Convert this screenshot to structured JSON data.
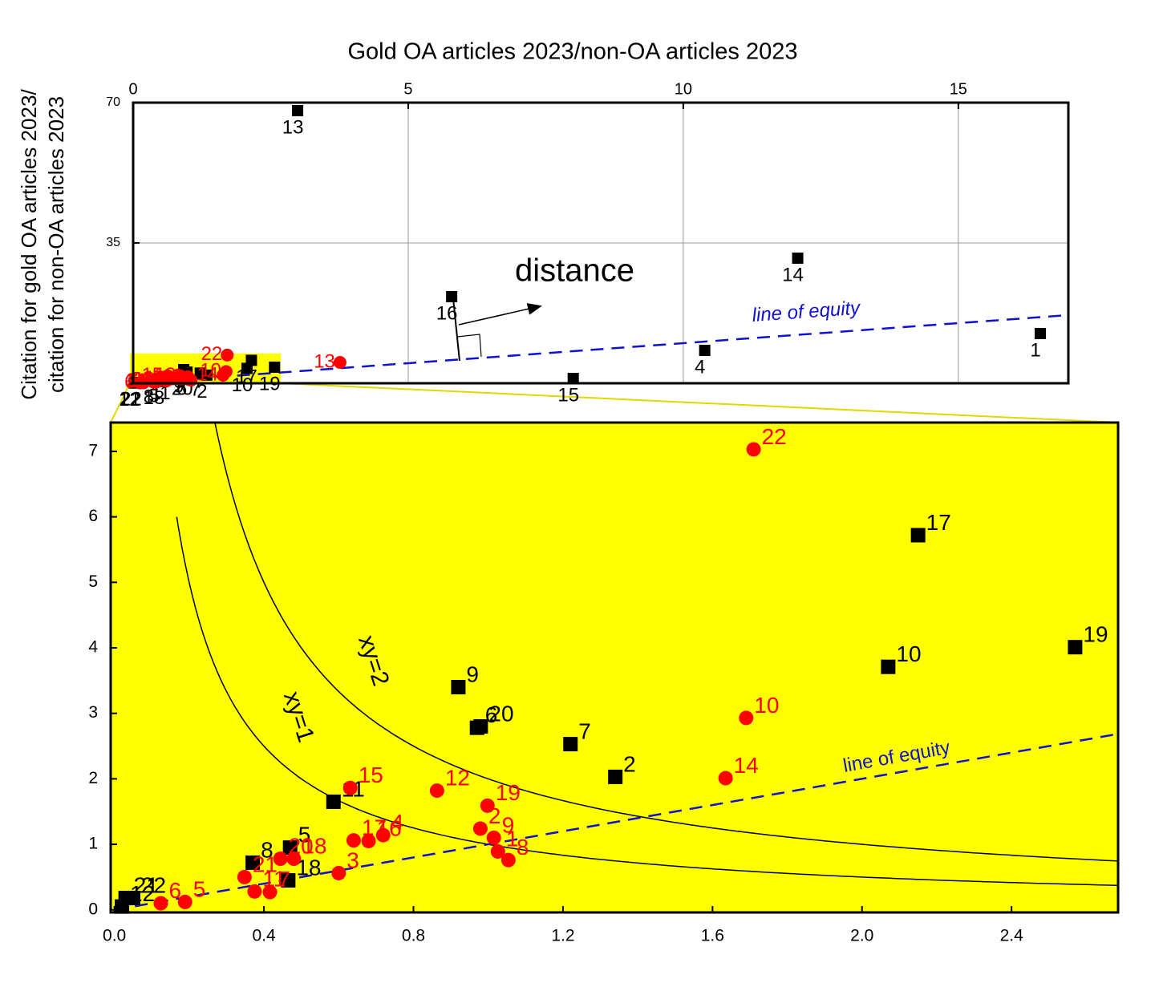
{
  "chart_data": [
    {
      "type": "scatter",
      "xlabel": "Gold OA articles 2023/non-OA articles 2023",
      "ylabel": [
        "Citation for gold OA articles 2023/",
        "citation for non-OA articles 2023"
      ],
      "xlim": [
        0,
        17
      ],
      "ylim": [
        0,
        70
      ],
      "xticks": [
        0,
        5,
        10,
        15
      ],
      "yticks": [
        35,
        70
      ],
      "grid": true,
      "annotation": "distance",
      "line_label": "line of equity",
      "series": [
        {
          "color": "#000000",
          "marker": "square",
          "labels": [
            "1",
            "2",
            "4",
            "5",
            "6",
            "7",
            "8",
            "9",
            "10",
            "11",
            "12",
            "13",
            "14",
            "15",
            "16",
            "17",
            "18",
            "19",
            "20",
            "21",
            "22"
          ],
          "x": [
            16.49,
            1.34,
            10.39,
            0.47,
            0.97,
            1.22,
            0.37,
            0.92,
            2.07,
            0.586,
            0.02,
            2.99,
            12.08,
            8.0,
            5.79,
            2.15,
            0.465,
            2.57,
            0.98,
            0.03,
            0.05
          ],
          "values": [
            12.4,
            2.03,
            8.2,
            0.95,
            2.78,
            2.53,
            0.72,
            3.4,
            3.71,
            1.65,
            0.05,
            68,
            31.2,
            1.2,
            21.6,
            5.72,
            0.45,
            4.01,
            2.8,
            0.18,
            0.18
          ]
        },
        {
          "color": "#ff0000",
          "marker": "circle",
          "labels": [
            "1",
            "2",
            "3",
            "4",
            "5",
            "6",
            "7",
            "8",
            "9",
            "10",
            "11",
            "12",
            "13",
            "14",
            "15",
            "16",
            "17",
            "18",
            "19",
            "20",
            "21",
            "22"
          ],
          "x": [
            1.026,
            0.979,
            0.6,
            0.719,
            0.189,
            0.124,
            0.416,
            1.054,
            1.015,
            1.69,
            0.375,
            0.863,
            3.76,
            1.635,
            0.631,
            0.68,
            0.64,
            0.48,
            0.998,
            0.444,
            0.348,
            1.71
          ],
          "values": [
            0.89,
            1.24,
            0.56,
            1.14,
            0.12,
            0.1,
            0.27,
            0.76,
            1.1,
            2.93,
            0.28,
            1.82,
            5.2,
            2.01,
            1.86,
            1.05,
            1.06,
            0.78,
            1.59,
            0.78,
            0.5,
            7.03
          ]
        }
      ]
    },
    {
      "type": "scatter",
      "xlim": [
        -0.01,
        2.685
      ],
      "ylim": [
        -0.04,
        7.44
      ],
      "xticks": [
        {
          "value": 0,
          "label": "0.0"
        },
        0.4,
        0.8,
        1.2,
        1.6,
        {
          "value": 2,
          "label": "2.0"
        },
        2.4
      ],
      "yticks": [
        0,
        1,
        2,
        3,
        4,
        5,
        6,
        7
      ],
      "line_label": "line of equity",
      "curves": [
        {
          "label": "xy=1",
          "k": 1
        },
        {
          "label": "xy=2",
          "k": 2
        }
      ],
      "series": [
        {
          "color": "#000000",
          "marker": "square",
          "labels": [
            "2",
            "5",
            "6",
            "7",
            "8",
            "9",
            "10",
            "11",
            "12",
            "17",
            "18",
            "19",
            "20",
            "21",
            "22"
          ],
          "x": [
            1.34,
            0.47,
            0.97,
            1.22,
            0.37,
            0.92,
            2.07,
            0.586,
            0.02,
            2.15,
            0.465,
            2.57,
            0.98,
            0.03,
            0.05
          ],
          "values": [
            2.03,
            0.95,
            2.78,
            2.53,
            0.72,
            3.4,
            3.71,
            1.65,
            0.05,
            5.72,
            0.45,
            4.01,
            2.8,
            0.18,
            0.18
          ]
        },
        {
          "color": "#ff0000",
          "marker": "circle",
          "labels": [
            "1",
            "2",
            "3",
            "4",
            "5",
            "6",
            "7",
            "8",
            "9",
            "10",
            "11",
            "12",
            "14",
            "15",
            "16",
            "17",
            "18",
            "19",
            "20",
            "21",
            "22"
          ],
          "x": [
            1.026,
            0.979,
            0.6,
            0.719,
            0.189,
            0.124,
            0.416,
            1.054,
            1.015,
            1.69,
            0.375,
            0.863,
            1.635,
            0.631,
            0.68,
            0.64,
            0.48,
            0.998,
            0.444,
            0.348,
            1.71
          ],
          "values": [
            0.89,
            1.24,
            0.56,
            1.14,
            0.12,
            0.1,
            0.27,
            0.76,
            1.1,
            2.93,
            0.28,
            1.82,
            2.01,
            1.86,
            1.05,
            1.06,
            0.78,
            1.59,
            0.78,
            0.5,
            7.03
          ]
        }
      ]
    }
  ]
}
